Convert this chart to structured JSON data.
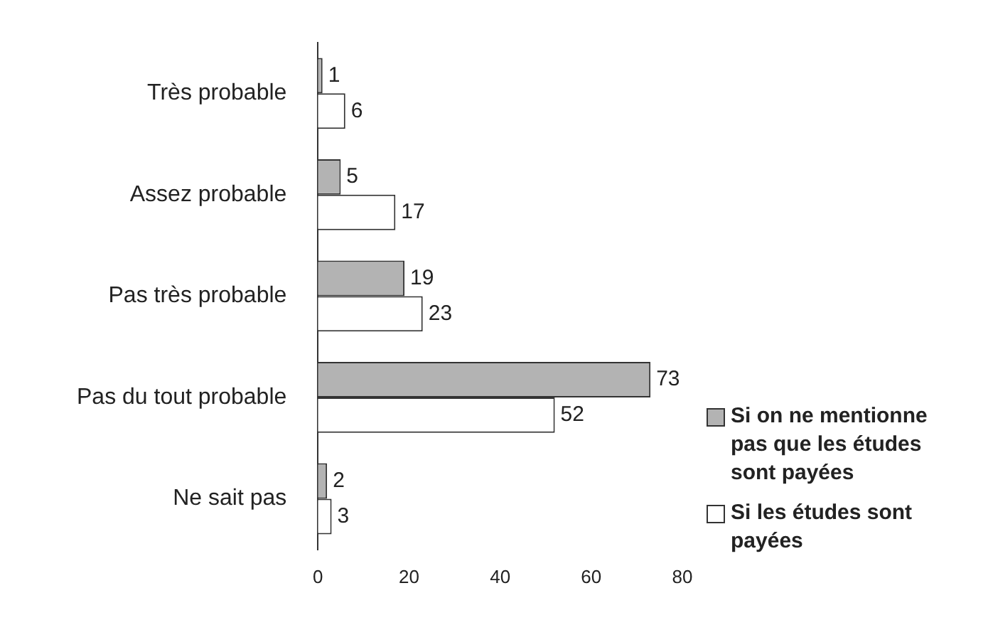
{
  "chart_data": {
    "type": "bar",
    "orientation": "horizontal",
    "categories": [
      "Très probable",
      "Assez probable",
      "Pas très probable",
      "Pas du tout probable",
      "Ne sait pas"
    ],
    "series": [
      {
        "name": "Si on ne mentionne pas que les études sont payées",
        "color": "#b3b3b3",
        "values": [
          1,
          5,
          19,
          73,
          2
        ]
      },
      {
        "name": "Si les études sont payées",
        "color": "#ffffff",
        "values": [
          6,
          17,
          23,
          52,
          3
        ]
      }
    ],
    "xlim": [
      0,
      80
    ],
    "xticks": [
      0,
      20,
      40,
      60,
      80
    ],
    "data_labels": true,
    "grid": false,
    "legend": "bottom right"
  }
}
